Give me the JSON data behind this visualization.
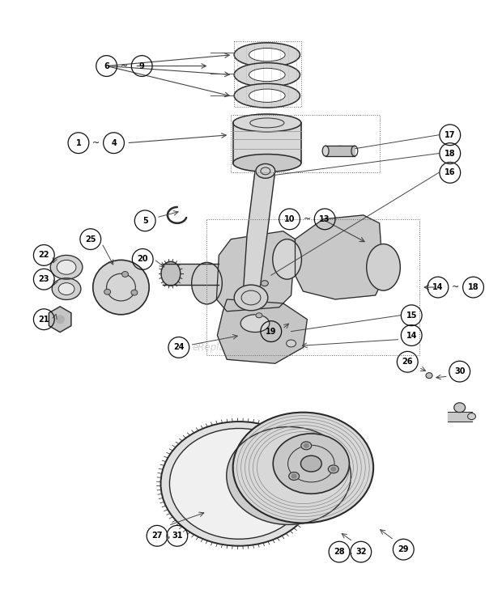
{
  "bg_color": "#ffffff",
  "watermark": "eReplacementParts.com",
  "watermark_color": "#bbbbbb",
  "lc": "#2a2a2a",
  "ac": "#444444",
  "gray_light": "#e8e8e8",
  "gray_mid": "#cccccc",
  "gray_dark": "#999999",
  "label_r": 0.021,
  "label_fs": 7.5
}
